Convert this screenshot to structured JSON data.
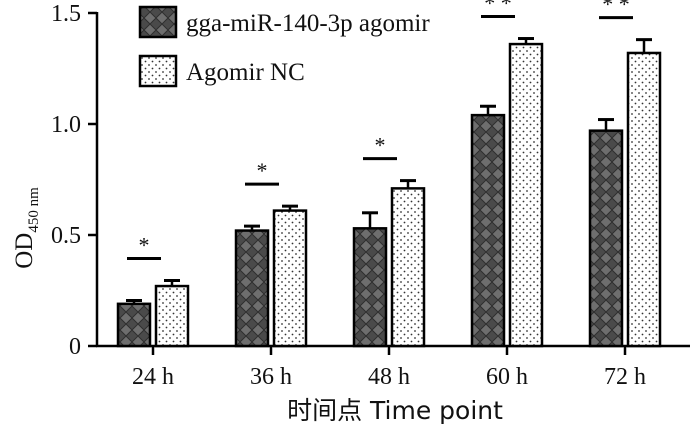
{
  "chart_data": {
    "type": "bar",
    "categories": [
      "24 h",
      "36 h",
      "48 h",
      "60 h",
      "72 h"
    ],
    "series": [
      {
        "name": "gga-miR-140-3p agomir",
        "values": [
          0.19,
          0.52,
          0.53,
          1.04,
          0.97
        ],
        "errors": [
          0.015,
          0.02,
          0.07,
          0.04,
          0.05
        ],
        "pattern": "crosshatch",
        "color": "#555555"
      },
      {
        "name": "Agomir NC",
        "values": [
          0.27,
          0.61,
          0.71,
          1.36,
          1.32
        ],
        "errors": [
          0.025,
          0.02,
          0.035,
          0.025,
          0.06
        ],
        "pattern": "dots",
        "color": "#ffffff"
      }
    ],
    "significance": [
      "*",
      "*",
      "*",
      "* *",
      "* *"
    ],
    "xlabel": "时间点 Time point",
    "ylabel": {
      "main": "OD",
      "subscript": "450 nm"
    },
    "ylim": [
      0,
      1.5
    ],
    "yticks": [
      0,
      0.5,
      1.0,
      1.5
    ],
    "ytick_labels": [
      "0",
      "0.5",
      "1.0",
      "1.5"
    ],
    "grid": false,
    "legend_position": "top-left"
  }
}
